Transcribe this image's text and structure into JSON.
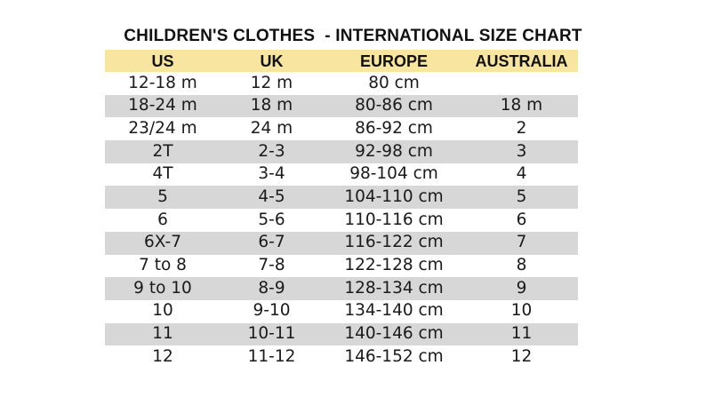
{
  "title": "CHILDREN'S CLOTHES  - INTERNATIONAL SIZE CHART",
  "table": {
    "headers": [
      "US",
      "UK",
      "EUROPE",
      "AUSTRALIA"
    ],
    "rows": [
      [
        "12-18 m",
        "12 m",
        "80 cm",
        ""
      ],
      [
        "18-24 m",
        "18 m",
        "80-86 cm",
        "18 m"
      ],
      [
        "23/24 m",
        "24 m",
        "86-92 cm",
        "2"
      ],
      [
        "2T",
        "2-3",
        "92-98 cm",
        "3"
      ],
      [
        "4T",
        "3-4",
        "98-104 cm",
        "4"
      ],
      [
        "5",
        "4-5",
        "104-110 cm",
        "5"
      ],
      [
        "6",
        "5-6",
        "110-116 cm",
        "6"
      ],
      [
        "6X-7",
        "6-7",
        "116-122 cm",
        "7"
      ],
      [
        "7 to 8",
        "7-8",
        "122-128 cm",
        "8"
      ],
      [
        "9 to 10",
        "8-9",
        "128-134 cm",
        "9"
      ],
      [
        "10",
        "9-10",
        "134-140 cm",
        "10"
      ],
      [
        "11",
        "10-11",
        "140-146 cm",
        "11"
      ],
      [
        "12",
        "11-12",
        "146-152 cm",
        "12"
      ]
    ]
  },
  "colors": {
    "header_background": "#f8e6a0",
    "stripe_background": "#d7d7d7",
    "text": "#1a1a1a"
  }
}
